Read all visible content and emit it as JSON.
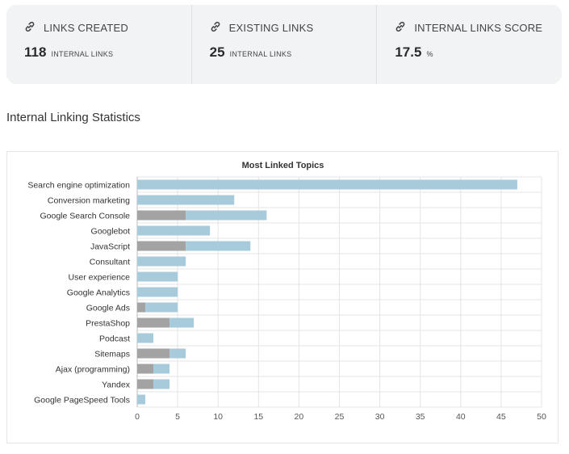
{
  "stats": [
    {
      "label": "LINKS CREATED",
      "value": "118",
      "unit": "INTERNAL LINKS",
      "icon": "link-icon"
    },
    {
      "label": "EXISTING LINKS",
      "value": "25",
      "unit": "INTERNAL LINKS",
      "icon": "link-icon"
    },
    {
      "label": "INTERNAL LINKS SCORE",
      "value": "17.5",
      "unit": "%",
      "icon": "link-icon"
    }
  ],
  "section_title": "Internal Linking Statistics",
  "chart_data": {
    "type": "bar",
    "orientation": "horizontal",
    "stacked": true,
    "title": "Most Linked Topics",
    "categories": [
      "Search engine optimization",
      "Conversion marketing",
      "Google Search Console",
      "Googlebot",
      "JavaScript",
      "Consultant",
      "User experience",
      "Google Analytics",
      "Google Ads",
      "PrestaShop",
      "Podcast",
      "Sitemaps",
      "Ajax (programming)",
      "Yandex",
      "Google PageSpeed Tools"
    ],
    "series": [
      {
        "color": "#a3a3a3",
        "values": [
          0,
          0,
          6,
          0,
          6,
          0,
          0,
          0,
          1,
          4,
          0,
          4,
          2,
          2,
          0
        ]
      },
      {
        "color": "#a8cbdc",
        "values": [
          47,
          12,
          10,
          9,
          8,
          6,
          5,
          5,
          4,
          3,
          2,
          2,
          2,
          2,
          1
        ]
      }
    ],
    "xlim": [
      0,
      50
    ],
    "xticks": [
      0,
      5,
      10,
      15,
      20,
      25,
      30,
      35,
      40,
      45,
      50
    ],
    "grid": true,
    "legend": "none"
  }
}
